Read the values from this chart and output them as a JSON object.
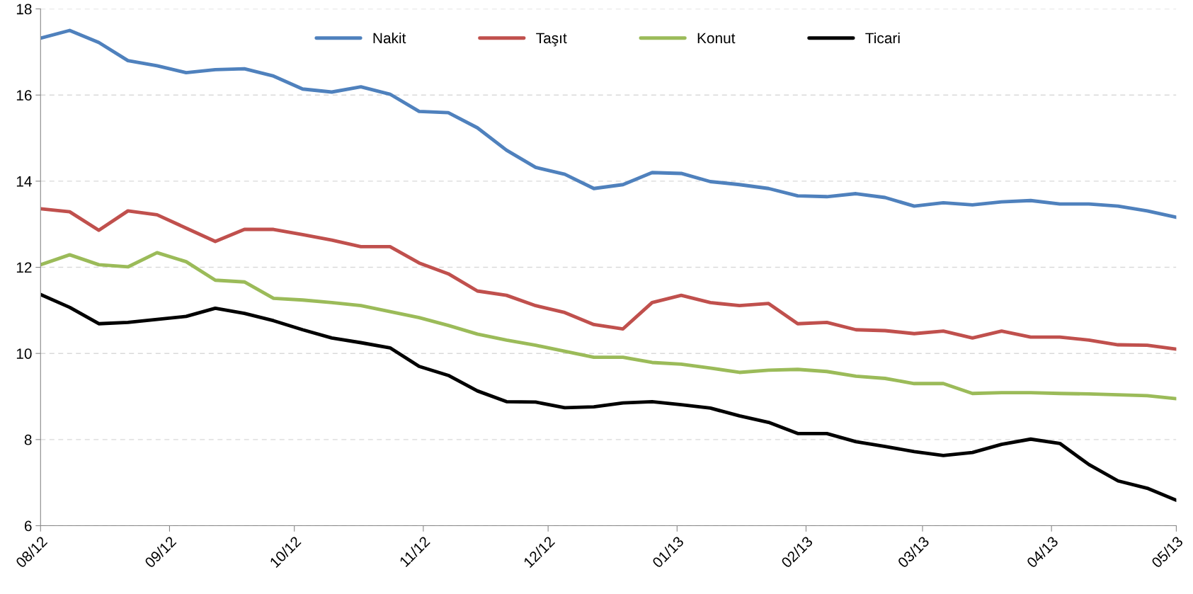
{
  "chart_data": {
    "type": "line",
    "x": [
      "2012-08-03",
      "2012-08-10",
      "2012-08-17",
      "2012-08-24",
      "2012-08-31",
      "2012-09-07",
      "2012-09-14",
      "2012-09-21",
      "2012-09-28",
      "2012-10-05",
      "2012-10-12",
      "2012-10-19",
      "2012-10-26",
      "2012-11-02",
      "2012-11-09",
      "2012-11-16",
      "2012-11-23",
      "2012-11-30",
      "2012-12-07",
      "2012-12-14",
      "2012-12-21",
      "2012-12-28",
      "2013-01-04",
      "2013-01-11",
      "2013-01-18",
      "2013-01-25",
      "2013-02-01",
      "2013-02-08",
      "2013-02-15",
      "2013-02-22",
      "2013-03-01",
      "2013-03-08",
      "2013-03-15",
      "2013-03-22",
      "2013-03-29",
      "2013-04-05",
      "2013-04-12",
      "2013-04-19",
      "2013-04-26",
      "2013-05-03"
    ],
    "series": [
      {
        "name": "Nakit",
        "color": "#4f81bd",
        "values": [
          17.32,
          17.5,
          17.22,
          16.8,
          16.68,
          16.52,
          16.59,
          16.61,
          16.44,
          16.14,
          16.07,
          16.19,
          16.02,
          15.62,
          15.59,
          15.24,
          14.72,
          14.32,
          14.16,
          13.83,
          13.92,
          14.2,
          14.18,
          13.99,
          13.92,
          13.83,
          13.66,
          13.64,
          13.71,
          13.62,
          13.42,
          13.5,
          13.45,
          13.52,
          13.55,
          13.47,
          13.47,
          13.42,
          13.31,
          13.16
        ]
      },
      {
        "name": "Taşıt",
        "color": "#c0504d",
        "values": [
          13.36,
          13.29,
          12.86,
          13.31,
          13.22,
          12.91,
          12.6,
          12.88,
          12.88,
          12.76,
          12.63,
          12.48,
          12.48,
          12.1,
          11.85,
          11.45,
          11.35,
          11.11,
          10.95,
          10.67,
          10.57,
          11.18,
          11.35,
          11.18,
          11.11,
          11.16,
          10.69,
          10.72,
          10.55,
          10.53,
          10.46,
          10.52,
          10.36,
          10.52,
          10.38,
          10.38,
          10.31,
          10.2,
          10.19,
          10.1
        ]
      },
      {
        "name": "Konut",
        "color": "#9bbb59",
        "values": [
          12.06,
          12.29,
          12.06,
          12.01,
          12.34,
          12.13,
          11.7,
          11.66,
          11.28,
          11.24,
          11.18,
          11.11,
          10.97,
          10.83,
          10.65,
          10.45,
          10.31,
          10.19,
          10.05,
          9.91,
          9.91,
          9.79,
          9.75,
          9.66,
          9.56,
          9.61,
          9.63,
          9.58,
          9.47,
          9.42,
          9.3,
          9.3,
          9.07,
          9.09,
          9.09,
          9.07,
          9.06,
          9.04,
          9.02,
          8.95
        ]
      },
      {
        "name": "Ticari",
        "color": "#000000",
        "values": [
          11.37,
          11.07,
          10.69,
          10.72,
          10.79,
          10.86,
          11.05,
          10.93,
          10.76,
          10.55,
          10.36,
          10.25,
          10.13,
          9.7,
          9.49,
          9.13,
          8.88,
          8.87,
          8.74,
          8.76,
          8.85,
          8.88,
          8.81,
          8.73,
          8.55,
          8.4,
          8.14,
          8.14,
          7.95,
          7.84,
          7.72,
          7.63,
          7.7,
          7.89,
          8.01,
          7.91,
          7.42,
          7.04,
          6.87,
          6.59
        ]
      }
    ],
    "xlim": [
      "2012-08-03",
      "2013-05-03"
    ],
    "xticks": [
      {
        "value": "2012-08-03",
        "label": "08/12"
      },
      {
        "value": "2012-09-03",
        "label": "09/12"
      },
      {
        "value": "2012-10-03",
        "label": "10/12"
      },
      {
        "value": "2012-11-03",
        "label": "11/12"
      },
      {
        "value": "2012-12-03",
        "label": "12/12"
      },
      {
        "value": "2013-01-03",
        "label": "01/13"
      },
      {
        "value": "2013-02-03",
        "label": "02/13"
      },
      {
        "value": "2013-03-03",
        "label": "03/13"
      },
      {
        "value": "2013-04-03",
        "label": "04/13"
      },
      {
        "value": "2013-05-03",
        "label": "05/13"
      }
    ],
    "ylim": [
      6,
      18
    ],
    "yticks": [
      6,
      8,
      10,
      12,
      14,
      16,
      18
    ],
    "grid": "y",
    "legend": "top",
    "marker": "none",
    "line_style": "solid"
  }
}
